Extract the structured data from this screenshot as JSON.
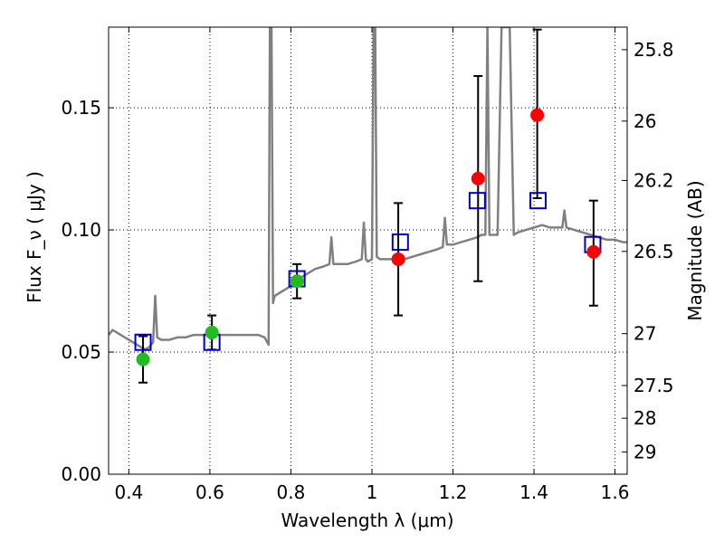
{
  "chart_data": {
    "type": "scatter",
    "xlabel": "Wavelength  λ (μm)",
    "ylabel": "Flux  F_ν  ( μJy )",
    "y2label": "Magnitude (AB)",
    "xlim": [
      0.35,
      1.63
    ],
    "ylim": [
      0.0,
      0.183
    ],
    "x_ticks": [
      0.4,
      0.6,
      0.8,
      1.0,
      1.2,
      1.4,
      1.6
    ],
    "x_tick_labels": [
      "0.4",
      "0.6",
      "0.8",
      "1",
      "1.2",
      "1.4",
      "1.6"
    ],
    "y_ticks": [
      0.0,
      0.05,
      0.1,
      0.15
    ],
    "y_tick_labels": [
      "0.00",
      "0.05",
      "0.10",
      "0.15"
    ],
    "mag_ticks": [
      25.8,
      26,
      26.2,
      26.5,
      27,
      27.5,
      28,
      29
    ],
    "mag_tick_labels": [
      "25.8",
      "26",
      "26.2",
      "26.5",
      "27",
      "27.5",
      "28",
      "29"
    ],
    "grid": true,
    "colors": {
      "spectrum": "#808080",
      "model": "#0000cc",
      "measured": "#ff0000",
      "measured_alt": "#22bb22",
      "errorbar": "#000000"
    },
    "series": [
      {
        "kind": "line",
        "x": [
          0.35,
          0.36,
          0.37,
          0.38,
          0.39,
          0.4,
          0.41,
          0.42,
          0.43,
          0.44,
          0.45,
          0.46,
          0.465,
          0.47,
          0.48,
          0.5,
          0.52,
          0.54,
          0.56,
          0.58,
          0.6,
          0.62,
          0.64,
          0.66,
          0.68,
          0.7,
          0.72,
          0.735,
          0.745,
          0.748,
          0.752,
          0.756,
          0.76,
          0.78,
          0.8,
          0.81,
          0.82,
          0.84,
          0.86,
          0.88,
          0.895,
          0.9,
          0.905,
          0.92,
          0.94,
          0.96,
          0.975,
          0.98,
          0.985,
          0.99,
          1.0,
          1.004,
          1.008,
          1.012,
          1.02,
          1.04,
          1.06,
          1.08,
          1.1,
          1.12,
          1.14,
          1.16,
          1.175,
          1.18,
          1.185,
          1.2,
          1.22,
          1.24,
          1.26,
          1.27,
          1.28,
          1.285,
          1.29,
          1.3,
          1.31,
          1.32,
          1.33,
          1.34,
          1.35,
          1.36,
          1.38,
          1.4,
          1.42,
          1.44,
          1.46,
          1.47,
          1.475,
          1.48,
          1.5,
          1.52,
          1.54,
          1.56,
          1.58,
          1.6,
          1.62,
          1.63
        ],
        "y": [
          0.057,
          0.059,
          0.058,
          0.057,
          0.056,
          0.055,
          0.054,
          0.053,
          0.052,
          0.051,
          0.052,
          0.054,
          0.073,
          0.056,
          0.055,
          0.055,
          0.056,
          0.056,
          0.057,
          0.057,
          0.057,
          0.057,
          0.057,
          0.057,
          0.057,
          0.057,
          0.057,
          0.056,
          0.053,
          0.183,
          0.183,
          0.07,
          0.073,
          0.075,
          0.077,
          0.079,
          0.08,
          0.082,
          0.084,
          0.085,
          0.086,
          0.097,
          0.086,
          0.086,
          0.086,
          0.087,
          0.088,
          0.103,
          0.088,
          0.087,
          0.088,
          0.183,
          0.183,
          0.089,
          0.088,
          0.088,
          0.088,
          0.088,
          0.089,
          0.09,
          0.091,
          0.092,
          0.093,
          0.105,
          0.094,
          0.094,
          0.095,
          0.096,
          0.097,
          0.098,
          0.098,
          0.183,
          0.098,
          0.098,
          0.098,
          0.183,
          0.183,
          0.183,
          0.098,
          0.099,
          0.1,
          0.101,
          0.102,
          0.101,
          0.101,
          0.101,
          0.108,
          0.101,
          0.1,
          0.099,
          0.098,
          0.097,
          0.096,
          0.096,
          0.095,
          0.095
        ]
      },
      {
        "kind": "model_squares",
        "x": [
          0.435,
          0.605,
          0.815,
          1.07,
          1.26,
          1.41,
          1.545
        ],
        "y": [
          0.054,
          0.054,
          0.08,
          0.095,
          0.112,
          0.112,
          0.094
        ]
      },
      {
        "kind": "measured_circles",
        "x": [
          0.435,
          0.605,
          0.815,
          1.065,
          1.262,
          1.408,
          1.547
        ],
        "y": [
          0.047,
          0.058,
          0.079,
          0.088,
          0.121,
          0.147,
          0.091
        ],
        "yerr_low": [
          0.0375,
          0.051,
          0.072,
          0.065,
          0.079,
          0.113,
          0.069
        ],
        "yerr_high": [
          0.0565,
          0.065,
          0.086,
          0.111,
          0.163,
          0.182,
          0.112
        ],
        "color_keys": [
          "measured_alt",
          "measured_alt",
          "measured_alt",
          "measured",
          "measured",
          "measured",
          "measured"
        ]
      }
    ]
  }
}
